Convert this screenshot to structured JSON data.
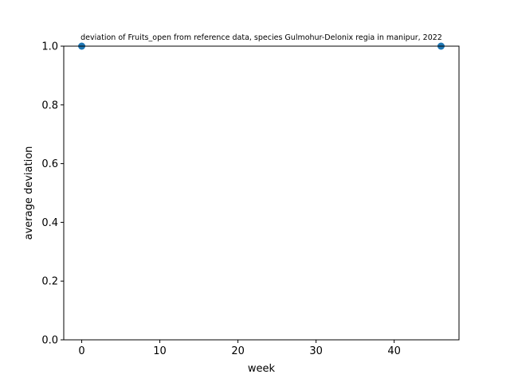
{
  "chart_data": {
    "type": "scatter",
    "title": "deviation of Fruits_open from reference data, species Gulmohur-Delonix regia in manipur, 2022",
    "xlabel": "week",
    "ylabel": "average deviation",
    "xlim": [
      -2.3,
      48.3
    ],
    "ylim": [
      0.0,
      1.0
    ],
    "xticks": [
      0,
      10,
      20,
      30,
      40
    ],
    "yticks": [
      0.0,
      0.2,
      0.4,
      0.6,
      0.8,
      1.0
    ],
    "xtick_labels": [
      "0",
      "10",
      "20",
      "30",
      "40"
    ],
    "ytick_labels": [
      "0.0",
      "0.2",
      "0.4",
      "0.6",
      "0.8",
      "1.0"
    ],
    "grid": false,
    "marker_color": "#1f77b4",
    "series": [
      {
        "x": [
          0,
          46
        ],
        "y": [
          1.0,
          1.0
        ]
      }
    ]
  }
}
